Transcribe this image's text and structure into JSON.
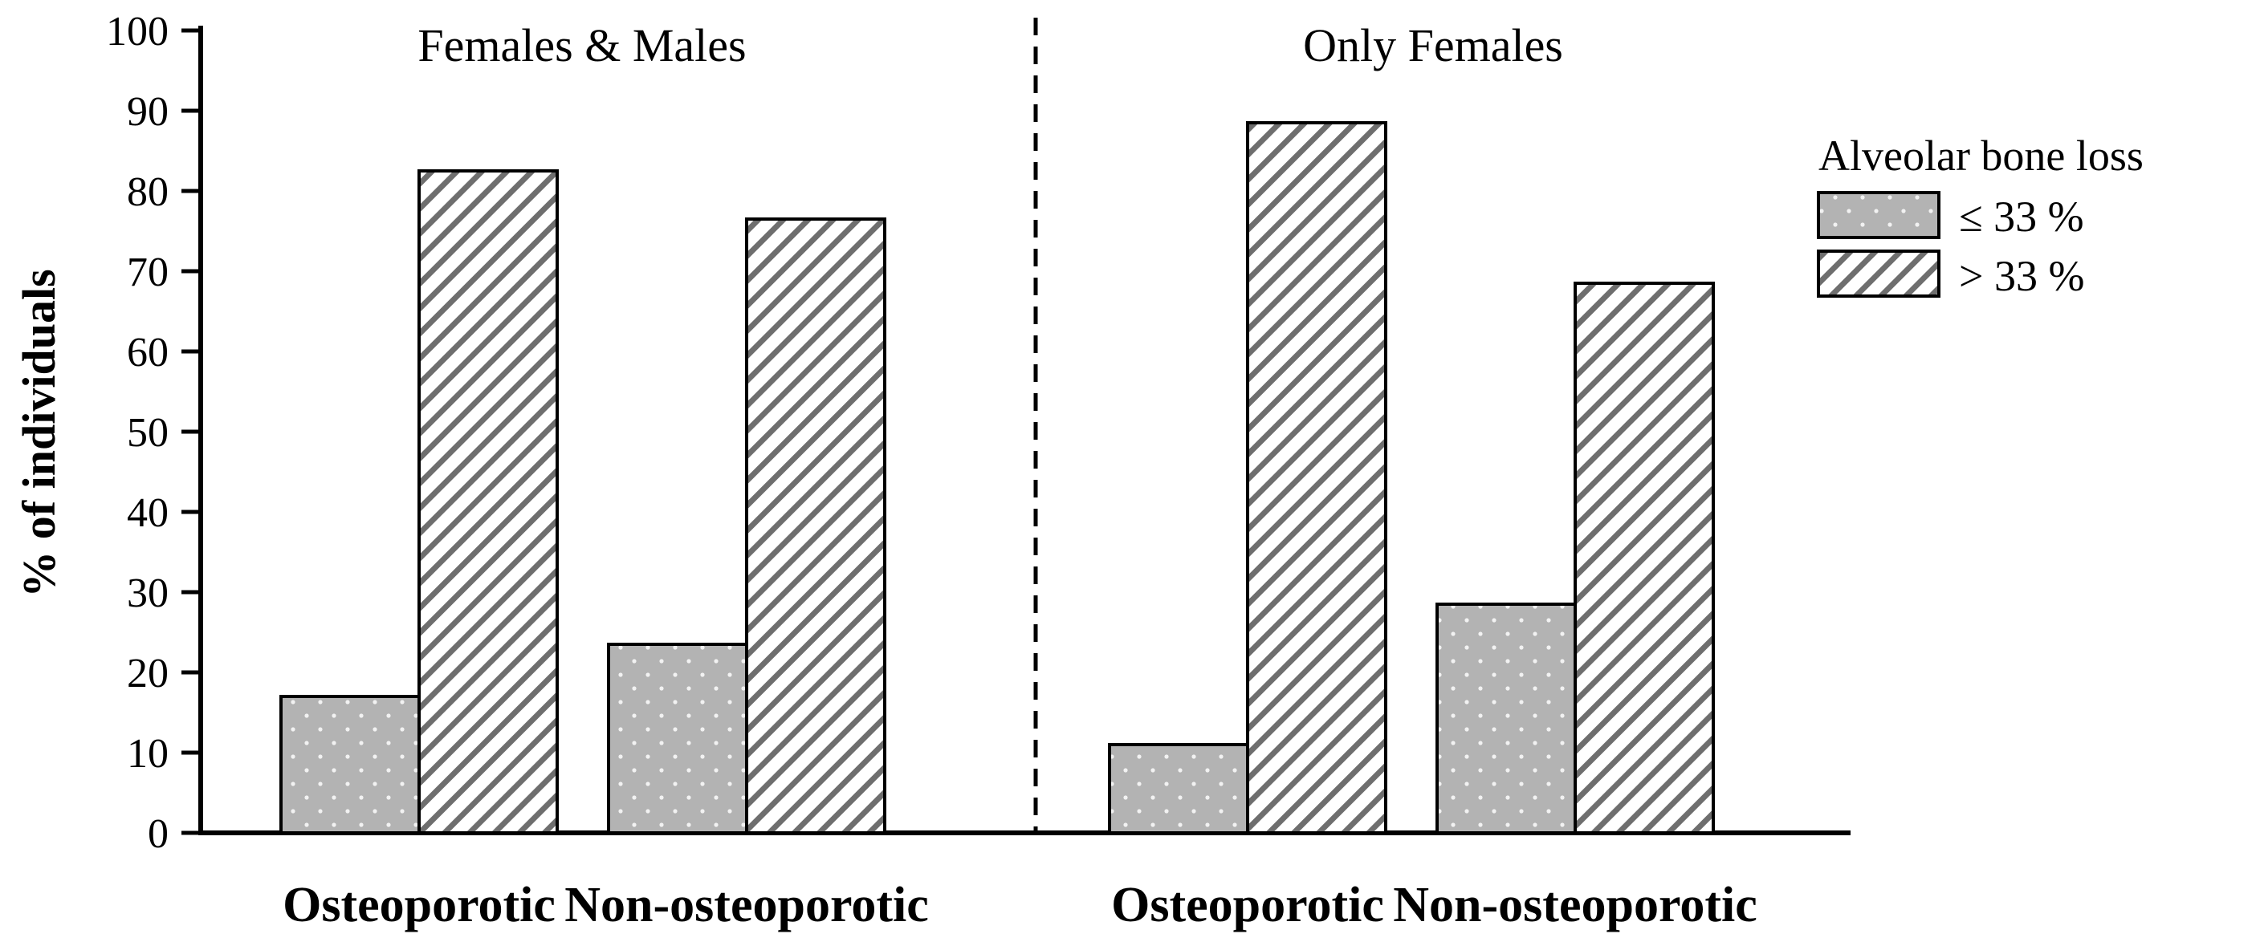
{
  "chart_data": {
    "type": "bar",
    "ylabel": "% of individuals",
    "ylim": [
      0,
      100
    ],
    "yticks": [
      0,
      10,
      20,
      30,
      40,
      50,
      60,
      70,
      80,
      90,
      100
    ],
    "panels": [
      {
        "title": "Females & Males",
        "categories": [
          "Osteoporotic",
          "Non-osteoporotic"
        ],
        "series": [
          {
            "name": "≤ 33 %",
            "values": [
              17,
              23.5
            ]
          },
          {
            "name": "> 33 %",
            "values": [
              82.5,
              76.5
            ]
          }
        ]
      },
      {
        "title": "Only Females",
        "categories": [
          "Osteoporotic",
          "Non-osteoporotic"
        ],
        "series": [
          {
            "name": "≤ 33 %",
            "values": [
              11,
              28.5
            ]
          },
          {
            "name": "> 33 %",
            "values": [
              88.5,
              68.5
            ]
          }
        ]
      }
    ],
    "legend": {
      "title": "Alveolar bone loss",
      "entries": [
        {
          "label": "≤ 33 %",
          "pattern": "dots"
        },
        {
          "label": "> 33 %",
          "pattern": "hatch"
        }
      ],
      "position": "right"
    },
    "divider": "dashed vertical line between panels"
  },
  "colors": {
    "dotted_fill": "#b3b3b3",
    "hatch_fill": "#ffffff",
    "stroke": "#000000"
  }
}
